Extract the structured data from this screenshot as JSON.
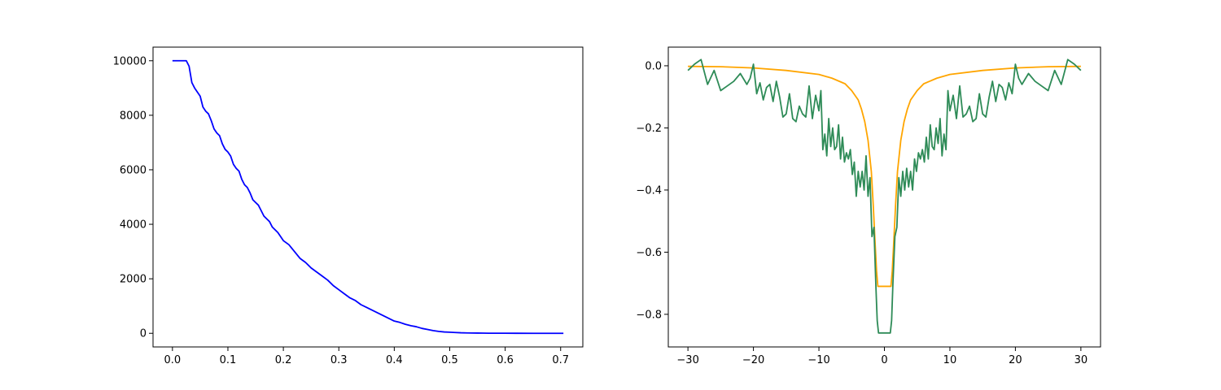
{
  "chart_data": [
    {
      "type": "line",
      "title": "",
      "xlabel": "",
      "ylabel": "",
      "xlim": [
        -0.035,
        0.74
      ],
      "ylim": [
        -500,
        10500
      ],
      "xticks": [
        0.0,
        0.1,
        0.2,
        0.3,
        0.4,
        0.5,
        0.6,
        0.7
      ],
      "xtick_labels": [
        "0.0",
        "0.1",
        "0.2",
        "0.3",
        "0.4",
        "0.5",
        "0.6",
        "0.7"
      ],
      "yticks": [
        0,
        2000,
        4000,
        6000,
        8000,
        10000
      ],
      "ytick_labels": [
        "0",
        "2000",
        "4000",
        "6000",
        "8000",
        "10000"
      ],
      "grid": false,
      "series": [
        {
          "color": "#0000ff",
          "x": [
            0.0,
            0.01,
            0.02,
            0.025,
            0.03,
            0.035,
            0.04,
            0.045,
            0.05,
            0.055,
            0.06,
            0.065,
            0.07,
            0.075,
            0.08,
            0.085,
            0.09,
            0.095,
            0.1,
            0.105,
            0.11,
            0.115,
            0.12,
            0.125,
            0.13,
            0.135,
            0.14,
            0.145,
            0.15,
            0.155,
            0.16,
            0.165,
            0.17,
            0.175,
            0.18,
            0.185,
            0.19,
            0.195,
            0.2,
            0.21,
            0.22,
            0.23,
            0.24,
            0.25,
            0.26,
            0.27,
            0.28,
            0.29,
            0.3,
            0.31,
            0.32,
            0.33,
            0.34,
            0.35,
            0.36,
            0.37,
            0.38,
            0.39,
            0.4,
            0.41,
            0.42,
            0.43,
            0.44,
            0.45,
            0.46,
            0.47,
            0.48,
            0.49,
            0.5,
            0.51,
            0.52,
            0.53,
            0.54,
            0.55,
            0.56,
            0.57,
            0.58,
            0.6,
            0.62,
            0.65,
            0.68,
            0.705
          ],
          "y": [
            10000,
            10000,
            10000,
            10000,
            9800,
            9200,
            9000,
            8850,
            8700,
            8300,
            8150,
            8050,
            7800,
            7500,
            7350,
            7250,
            6950,
            6750,
            6650,
            6500,
            6200,
            6050,
            5950,
            5650,
            5450,
            5350,
            5150,
            4900,
            4800,
            4700,
            4500,
            4300,
            4200,
            4100,
            3900,
            3800,
            3700,
            3550,
            3400,
            3250,
            3000,
            2750,
            2600,
            2400,
            2250,
            2100,
            1950,
            1750,
            1600,
            1450,
            1300,
            1200,
            1050,
            950,
            850,
            750,
            650,
            550,
            450,
            400,
            330,
            280,
            240,
            180,
            140,
            100,
            70,
            50,
            40,
            30,
            20,
            15,
            10,
            8,
            6,
            4,
            3,
            2,
            1,
            0,
            0,
            0
          ]
        }
      ]
    },
    {
      "type": "line",
      "title": "",
      "xlabel": "",
      "ylabel": "",
      "xlim": [
        -33,
        33
      ],
      "ylim": [
        -0.905,
        0.06
      ],
      "xticks": [
        -30,
        -20,
        -10,
        0,
        10,
        20,
        30
      ],
      "xtick_labels": [
        "−30",
        "−20",
        "−10",
        "0",
        "10",
        "20",
        "30"
      ],
      "yticks": [
        0.0,
        -0.2,
        -0.4,
        -0.6,
        -0.8
      ],
      "ytick_labels": [
        "0.0",
        "−0.2",
        "−0.4",
        "−0.6",
        "−0.8"
      ],
      "grid": false,
      "series": [
        {
          "color": "#ffa500",
          "x": [
            -30,
            -25,
            -20,
            -15,
            -10,
            -8,
            -6,
            -5,
            -4,
            -3.5,
            -3,
            -2.5,
            -2,
            -1.7,
            -1.4,
            -1.2,
            -1.0,
            1.0,
            1.2,
            1.4,
            1.7,
            2,
            2.5,
            3,
            3.5,
            4,
            5,
            6,
            8,
            10,
            15,
            20,
            25,
            30
          ],
          "y": [
            -0.002,
            -0.003,
            -0.007,
            -0.015,
            -0.028,
            -0.04,
            -0.058,
            -0.08,
            -0.11,
            -0.14,
            -0.18,
            -0.24,
            -0.34,
            -0.45,
            -0.58,
            -0.66,
            -0.71,
            -0.71,
            -0.66,
            -0.58,
            -0.45,
            -0.34,
            -0.24,
            -0.18,
            -0.14,
            -0.11,
            -0.08,
            -0.058,
            -0.04,
            -0.028,
            -0.015,
            -0.007,
            -0.003,
            -0.002
          ]
        },
        {
          "color": "#2e8b57",
          "x": [
            -30,
            -29,
            -28,
            -27,
            -26,
            -25,
            -24,
            -23,
            -22,
            -21,
            -20.5,
            -20,
            -19.5,
            -19,
            -18.5,
            -18,
            -17.5,
            -17,
            -16.5,
            -16,
            -15.5,
            -15,
            -14.5,
            -14,
            -13.5,
            -13,
            -12.5,
            -12,
            -11.5,
            -11,
            -10.5,
            -10,
            -9.7,
            -9.4,
            -9.1,
            -8.8,
            -8.5,
            -8.2,
            -7.9,
            -7.6,
            -7.3,
            -7.0,
            -6.7,
            -6.4,
            -6.1,
            -5.8,
            -5.5,
            -5.2,
            -4.9,
            -4.6,
            -4.3,
            -4.0,
            -3.7,
            -3.4,
            -3.1,
            -2.8,
            -2.5,
            -2.2,
            -1.9,
            -1.6,
            -1.3,
            -1.1,
            -0.9,
            0.9,
            1.1,
            1.3,
            1.6,
            1.9,
            2.2,
            2.5,
            2.8,
            3.1,
            3.4,
            3.7,
            4.0,
            4.3,
            4.6,
            4.9,
            5.2,
            5.5,
            5.8,
            6.1,
            6.4,
            6.7,
            7.0,
            7.3,
            7.6,
            7.9,
            8.2,
            8.5,
            8.8,
            9.1,
            9.4,
            9.7,
            10,
            10.5,
            11,
            11.5,
            12,
            12.5,
            13,
            13.5,
            14,
            14.5,
            15,
            15.5,
            16,
            16.5,
            17,
            17.5,
            18,
            18.5,
            19,
            19.5,
            20,
            20.5,
            21,
            22,
            23,
            24,
            25,
            26,
            27,
            28,
            29,
            30
          ],
          "y": [
            -0.015,
            0.005,
            0.02,
            -0.06,
            -0.015,
            -0.08,
            -0.065,
            -0.05,
            -0.025,
            -0.06,
            -0.04,
            0.005,
            -0.09,
            -0.055,
            -0.11,
            -0.07,
            -0.06,
            -0.115,
            -0.05,
            -0.1,
            -0.165,
            -0.155,
            -0.09,
            -0.17,
            -0.18,
            -0.13,
            -0.155,
            -0.165,
            -0.065,
            -0.17,
            -0.095,
            -0.145,
            -0.08,
            -0.27,
            -0.22,
            -0.29,
            -0.17,
            -0.26,
            -0.2,
            -0.27,
            -0.26,
            -0.19,
            -0.3,
            -0.23,
            -0.31,
            -0.28,
            -0.3,
            -0.27,
            -0.35,
            -0.31,
            -0.42,
            -0.34,
            -0.39,
            -0.34,
            -0.4,
            -0.29,
            -0.42,
            -0.36,
            -0.55,
            -0.52,
            -0.71,
            -0.82,
            -0.86,
            -0.86,
            -0.82,
            -0.7,
            -0.55,
            -0.52,
            -0.36,
            -0.42,
            -0.34,
            -0.4,
            -0.33,
            -0.39,
            -0.34,
            -0.4,
            -0.3,
            -0.34,
            -0.28,
            -0.3,
            -0.27,
            -0.31,
            -0.23,
            -0.3,
            -0.19,
            -0.26,
            -0.27,
            -0.2,
            -0.25,
            -0.17,
            -0.29,
            -0.22,
            -0.27,
            -0.08,
            -0.145,
            -0.095,
            -0.17,
            -0.065,
            -0.165,
            -0.155,
            -0.13,
            -0.18,
            -0.17,
            -0.09,
            -0.155,
            -0.165,
            -0.1,
            -0.05,
            -0.115,
            -0.06,
            -0.07,
            -0.11,
            -0.055,
            -0.09,
            0.005,
            -0.04,
            -0.06,
            -0.025,
            -0.05,
            -0.065,
            -0.08,
            -0.015,
            -0.06,
            0.02,
            0.005,
            -0.015
          ]
        }
      ]
    }
  ]
}
